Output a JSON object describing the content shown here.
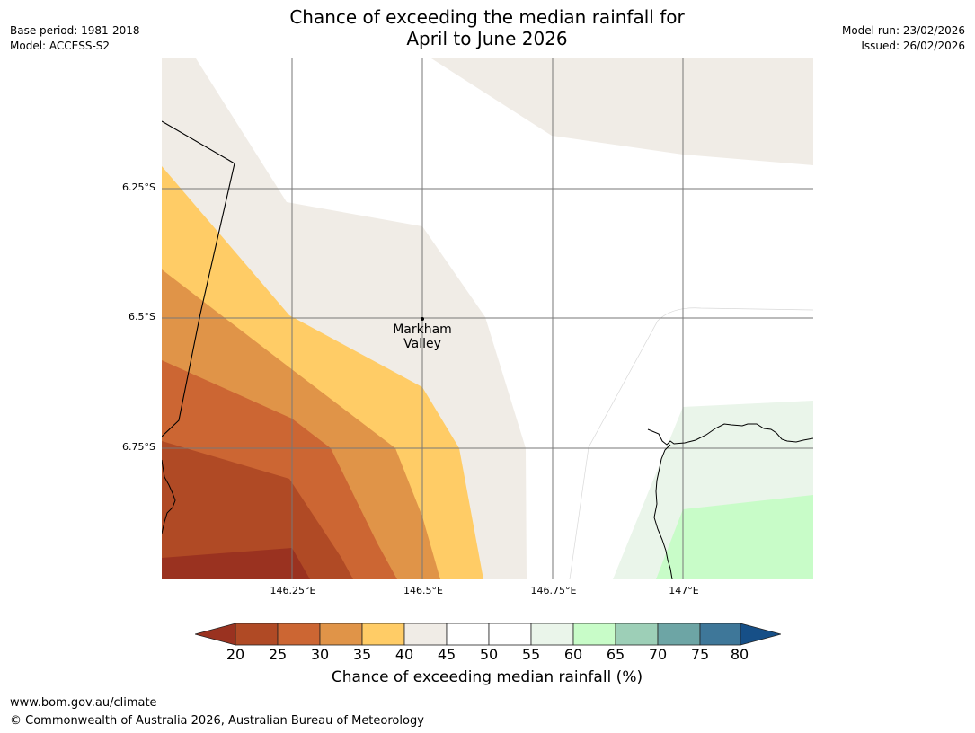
{
  "header": {
    "title_line1": "Chance of exceeding the median rainfall for",
    "title_line2": "April to June 2026",
    "base_period": "Base period: 1981-2018",
    "model": "Model: ACCESS-S2",
    "model_run": "Model run: 23/02/2026",
    "issued": "Issued: 26/02/2026"
  },
  "map": {
    "lat_labels": [
      "6.25°S",
      "6.5°S",
      "6.75°S"
    ],
    "lon_labels": [
      "146.25°E",
      "146.5°E",
      "146.75°E",
      "147°E"
    ],
    "place": {
      "name_line1": "Markham",
      "name_line2": "Valley",
      "lat": "6.5°S",
      "lon": "146.5°E"
    }
  },
  "legend": {
    "ticks": [
      "20",
      "25",
      "30",
      "35",
      "40",
      "45",
      "50",
      "55",
      "60",
      "65",
      "70",
      "75",
      "80"
    ],
    "colors": [
      "#9a3220",
      "#b04a25",
      "#cc6633",
      "#e09448",
      "#ffcc66",
      "#f0ece6",
      "#ffffff",
      "#ffffff",
      "#eaf5ea",
      "#c8fcc8",
      "#9dcfb7",
      "#6da5a5",
      "#3e7799",
      "#164f87"
    ],
    "label": "Chance of exceeding median rainfall (%)"
  },
  "footer": {
    "url": "www.bom.gov.au/climate",
    "copyright": "© Commonwealth of Australia 2026, Australian Bureau of Meteorology"
  }
}
